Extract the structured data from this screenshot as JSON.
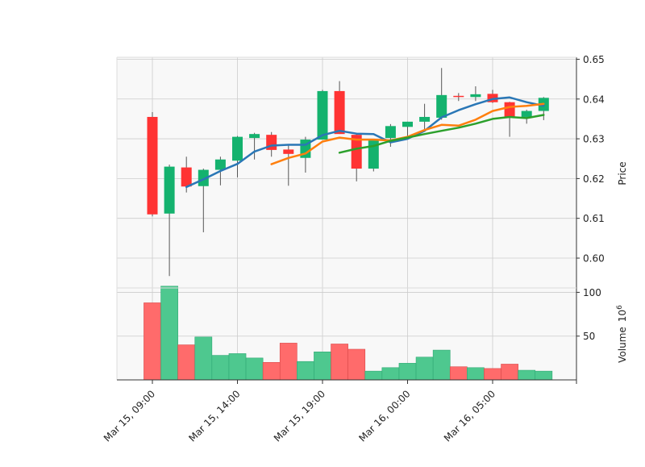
{
  "chart_data": {
    "type": "candlestick",
    "x_tick_labels": [
      "Mar 15, 09:00",
      "Mar 15, 14:00",
      "Mar 15, 19:00",
      "Mar 16, 00:00",
      "Mar 16, 05:00"
    ],
    "x_tick_positions": [
      0,
      5,
      10,
      15,
      20
    ],
    "price_axis": {
      "label": "Price",
      "ticks": [
        "0.60",
        "0.61",
        "0.62",
        "0.63",
        "0.64",
        "0.65"
      ],
      "tick_values": [
        0.6,
        0.61,
        0.62,
        0.63,
        0.64,
        0.65
      ],
      "range": [
        0.5925,
        0.6505
      ]
    },
    "volume_axis": {
      "label": "Volume",
      "multiplier_label": "10",
      "multiplier_exp": "6",
      "ticks": [
        "50",
        "100"
      ],
      "tick_values": [
        50,
        100
      ],
      "range": [
        0,
        105
      ]
    },
    "candles": [
      {
        "open": 0.6355,
        "high": 0.6367,
        "low": 0.6105,
        "close": 0.611,
        "volume": 88
      },
      {
        "open": 0.6112,
        "high": 0.6235,
        "low": 0.5955,
        "close": 0.623,
        "volume": 107
      },
      {
        "open": 0.6228,
        "high": 0.6255,
        "low": 0.6165,
        "close": 0.618,
        "volume": 40
      },
      {
        "open": 0.6181,
        "high": 0.6225,
        "low": 0.6065,
        "close": 0.6222,
        "volume": 49
      },
      {
        "open": 0.6222,
        "high": 0.6255,
        "low": 0.6183,
        "close": 0.6248,
        "volume": 28
      },
      {
        "open": 0.6245,
        "high": 0.6307,
        "low": 0.6203,
        "close": 0.6305,
        "volume": 30
      },
      {
        "open": 0.6302,
        "high": 0.6315,
        "low": 0.6248,
        "close": 0.6312,
        "volume": 25
      },
      {
        "open": 0.631,
        "high": 0.6317,
        "low": 0.6255,
        "close": 0.6272,
        "volume": 20
      },
      {
        "open": 0.6273,
        "high": 0.6285,
        "low": 0.6182,
        "close": 0.6262,
        "volume": 42
      },
      {
        "open": 0.6252,
        "high": 0.6305,
        "low": 0.6215,
        "close": 0.6298,
        "volume": 21
      },
      {
        "open": 0.6298,
        "high": 0.6423,
        "low": 0.6298,
        "close": 0.642,
        "volume": 32
      },
      {
        "open": 0.642,
        "high": 0.6445,
        "low": 0.6312,
        "close": 0.6312,
        "volume": 41
      },
      {
        "open": 0.631,
        "high": 0.6315,
        "low": 0.6193,
        "close": 0.6225,
        "volume": 35
      },
      {
        "open": 0.6225,
        "high": 0.63,
        "low": 0.6218,
        "close": 0.6297,
        "volume": 10
      },
      {
        "open": 0.6302,
        "high": 0.6337,
        "low": 0.628,
        "close": 0.6332,
        "volume": 14
      },
      {
        "open": 0.633,
        "high": 0.6343,
        "low": 0.6305,
        "close": 0.6343,
        "volume": 19
      },
      {
        "open": 0.6343,
        "high": 0.6388,
        "low": 0.632,
        "close": 0.6355,
        "volume": 26
      },
      {
        "open": 0.6353,
        "high": 0.6478,
        "low": 0.6348,
        "close": 0.641,
        "volume": 34
      },
      {
        "open": 0.6408,
        "high": 0.6415,
        "low": 0.6395,
        "close": 0.6405,
        "volume": 15
      },
      {
        "open": 0.6405,
        "high": 0.6432,
        "low": 0.6395,
        "close": 0.6412,
        "volume": 14
      },
      {
        "open": 0.6413,
        "high": 0.6423,
        "low": 0.639,
        "close": 0.6392,
        "volume": 13
      },
      {
        "open": 0.6392,
        "high": 0.6393,
        "low": 0.6305,
        "close": 0.6355,
        "volume": 18
      },
      {
        "open": 0.6355,
        "high": 0.6373,
        "low": 0.6338,
        "close": 0.637,
        "volume": 11
      },
      {
        "open": 0.637,
        "high": 0.6405,
        "low": 0.6347,
        "close": 0.6403,
        "volume": 10
      }
    ],
    "moving_averages": [
      {
        "color": "#2a77b6",
        "start_index": 2,
        "values": [
          0.6179,
          0.6198,
          0.6219,
          0.6237,
          0.6268,
          0.6283,
          0.6285,
          0.6285,
          0.6309,
          0.632,
          0.6313,
          0.6312,
          0.6291,
          0.63,
          0.632,
          0.6354,
          0.6372,
          0.6387,
          0.64,
          0.6404,
          0.6392,
          0.6383
        ]
      },
      {
        "color": "#ff7f0e",
        "start_index": 7,
        "values": [
          0.6236,
          0.6252,
          0.6263,
          0.6293,
          0.6303,
          0.6298,
          0.6298,
          0.6296,
          0.6305,
          0.6322,
          0.6335,
          0.6333,
          0.6348,
          0.637,
          0.638,
          0.6383,
          0.6388
        ]
      },
      {
        "color": "#2ca02c",
        "start_index": 11,
        "values": [
          0.6265,
          0.6275,
          0.6282,
          0.6295,
          0.6303,
          0.6312,
          0.632,
          0.6328,
          0.6338,
          0.635,
          0.6355,
          0.6352,
          0.636
        ]
      }
    ],
    "colors": {
      "up": "#14b26e",
      "down": "#ff3333",
      "up_volume": "#4ec88f",
      "down_volume": "#ff6b6b",
      "plot_background": "#f8f8f8",
      "grid": "#cccccc"
    },
    "grid": true
  }
}
